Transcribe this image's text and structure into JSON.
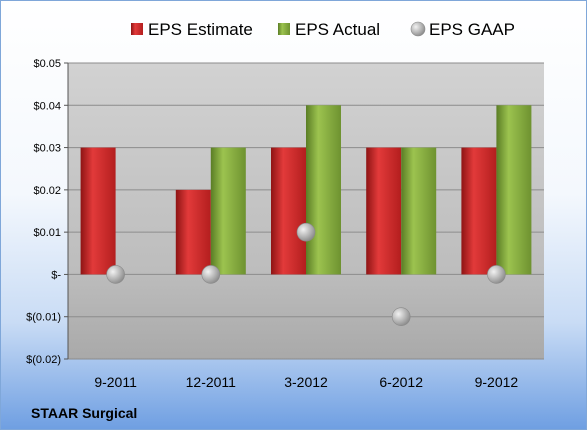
{
  "company": "STAAR Surgical",
  "colors": {
    "estimate": "#d62828",
    "actual": "#7fa83a",
    "gaap": "#a6a6a6"
  },
  "chart_data": {
    "type": "bar",
    "categories": [
      "9-2011",
      "12-2011",
      "3-2012",
      "6-2012",
      "9-2012"
    ],
    "series": [
      {
        "name": "EPS Estimate",
        "type": "bar",
        "values": [
          0.03,
          0.02,
          0.03,
          0.03,
          0.03
        ]
      },
      {
        "name": "EPS Actual",
        "type": "bar",
        "values": [
          null,
          0.03,
          0.04,
          0.03,
          0.04
        ]
      },
      {
        "name": "EPS GAAP",
        "type": "scatter",
        "values": [
          0.0,
          0.0,
          0.01,
          -0.01,
          0.0
        ]
      }
    ],
    "ylim": [
      -0.02,
      0.05
    ],
    "yticks": [
      0.05,
      0.04,
      0.03,
      0.02,
      0.01,
      0.0,
      -0.01,
      -0.02
    ],
    "ytick_labels": [
      "$0.05",
      "$0.04",
      "$0.03",
      "$0.02",
      "$0.01",
      "$-",
      "$(0.01)",
      "$(0.02)"
    ],
    "grid": true,
    "legend": "top"
  }
}
